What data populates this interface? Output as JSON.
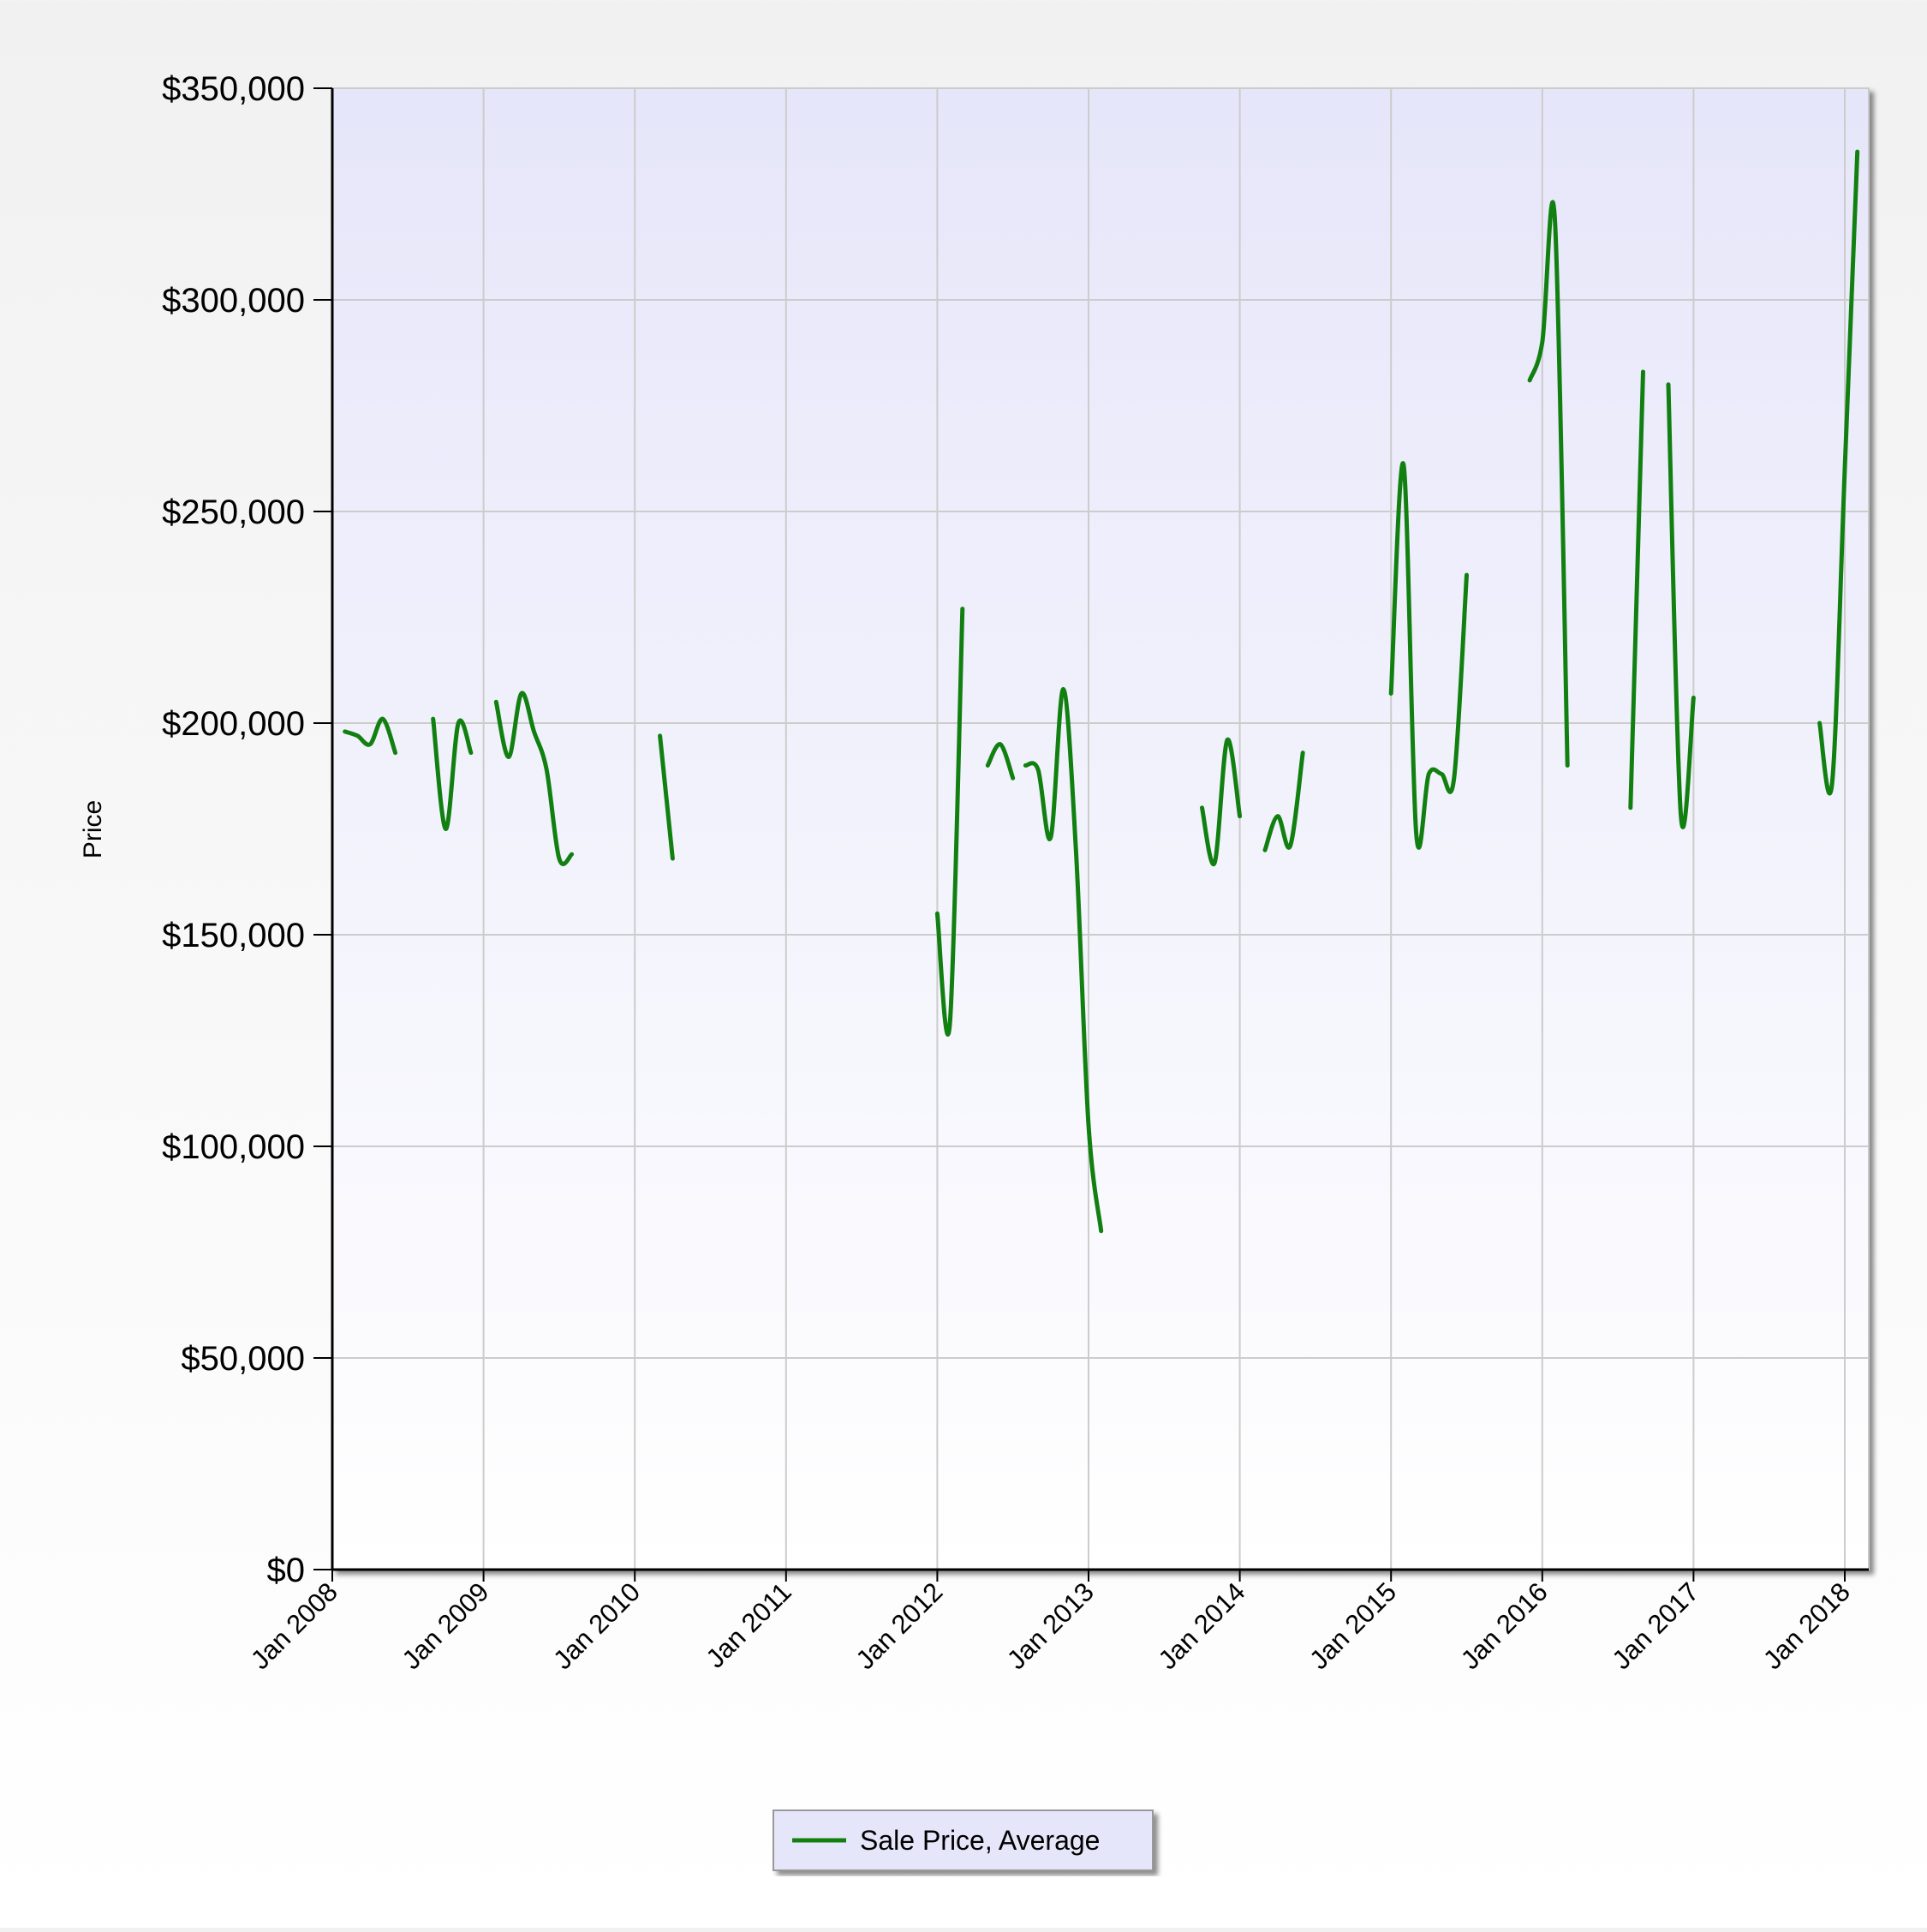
{
  "chart_data": {
    "type": "line",
    "title": "",
    "xlabel": "",
    "ylabel": "Price",
    "ylim": [
      0,
      350000
    ],
    "y_ticks": [
      {
        "value": 0,
        "label": "$0"
      },
      {
        "value": 50000,
        "label": "$50,000"
      },
      {
        "value": 100000,
        "label": "$100,000"
      },
      {
        "value": 150000,
        "label": "$150,000"
      },
      {
        "value": 200000,
        "label": "$200,000"
      },
      {
        "value": 250000,
        "label": "$250,000"
      },
      {
        "value": 300000,
        "label": "$300,000"
      },
      {
        "value": 350000,
        "label": "$350,000"
      }
    ],
    "xlim": [
      "2008-01",
      "2018-02"
    ],
    "x_ticks": [
      {
        "value": "2008-01",
        "label": "Jan 2008"
      },
      {
        "value": "2009-01",
        "label": "Jan 2009"
      },
      {
        "value": "2010-01",
        "label": "Jan 2010"
      },
      {
        "value": "2011-01",
        "label": "Jan 2011"
      },
      {
        "value": "2012-01",
        "label": "Jan 2012"
      },
      {
        "value": "2013-01",
        "label": "Jan 2013"
      },
      {
        "value": "2014-01",
        "label": "Jan 2014"
      },
      {
        "value": "2015-01",
        "label": "Jan 2015"
      },
      {
        "value": "2016-01",
        "label": "Jan 2016"
      },
      {
        "value": "2017-01",
        "label": "Jan 2017"
      },
      {
        "value": "2018-01",
        "label": "Jan 2018"
      }
    ],
    "grid": true,
    "legend_position": "bottom-center",
    "series": [
      {
        "name": "Sale Price, Average",
        "color": "#118011",
        "segments": [
          [
            [
              "2008-02",
              198000
            ],
            [
              "2008-03",
              197000
            ],
            [
              "2008-04",
              195000
            ],
            [
              "2008-05",
              201000
            ],
            [
              "2008-06",
              193000
            ]
          ],
          [
            [
              "2008-09",
              201000
            ],
            [
              "2008-10",
              175000
            ],
            [
              "2008-11",
              200000
            ],
            [
              "2008-12",
              193000
            ]
          ],
          [
            [
              "2009-02",
              205000
            ],
            [
              "2009-03",
              192000
            ],
            [
              "2009-04",
              207000
            ],
            [
              "2009-05",
              198000
            ],
            [
              "2009-06",
              189000
            ],
            [
              "2009-07",
              168000
            ],
            [
              "2009-08",
              169000
            ]
          ],
          [
            [
              "2010-03",
              197000
            ],
            [
              "2010-04",
              168000
            ]
          ],
          [
            [
              "2012-01",
              155000
            ],
            [
              "2012-02",
              129000
            ],
            [
              "2012-03",
              227000
            ]
          ],
          [
            [
              "2012-05",
              190000
            ],
            [
              "2012-06",
              195000
            ],
            [
              "2012-07",
              187000
            ]
          ],
          [
            [
              "2012-08",
              190000
            ],
            [
              "2012-09",
              189000
            ],
            [
              "2012-10",
              173000
            ],
            [
              "2012-11",
              208000
            ],
            [
              "2012-12",
              170000
            ],
            [
              "2013-01",
              105000
            ],
            [
              "2013-02",
              80000
            ]
          ],
          [
            [
              "2013-10",
              180000
            ],
            [
              "2013-11",
              167000
            ],
            [
              "2013-12",
              196000
            ],
            [
              "2014-01",
              178000
            ]
          ],
          [
            [
              "2014-03",
              170000
            ],
            [
              "2014-04",
              178000
            ],
            [
              "2014-05",
              171000
            ],
            [
              "2014-06",
              193000
            ]
          ],
          [
            [
              "2015-01",
              207000
            ],
            [
              "2015-02",
              261000
            ],
            [
              "2015-03",
              174000
            ],
            [
              "2015-04",
              188000
            ],
            [
              "2015-05",
              188000
            ],
            [
              "2015-06",
              187000
            ],
            [
              "2015-07",
              235000
            ]
          ],
          [
            [
              "2015-12",
              281000
            ],
            [
              "2016-01",
              290000
            ],
            [
              "2016-02",
              319000
            ],
            [
              "2016-03",
              190000
            ]
          ],
          [
            [
              "2016-08",
              180000
            ],
            [
              "2016-09",
              283000
            ]
          ],
          [
            [
              "2016-11",
              280000
            ],
            [
              "2016-12",
              178000
            ],
            [
              "2017-01",
              206000
            ]
          ],
          [
            [
              "2017-11",
              200000
            ],
            [
              "2017-12",
              186000
            ],
            [
              "2018-01",
              260000
            ],
            [
              "2018-02",
              335000
            ]
          ]
        ]
      }
    ]
  }
}
